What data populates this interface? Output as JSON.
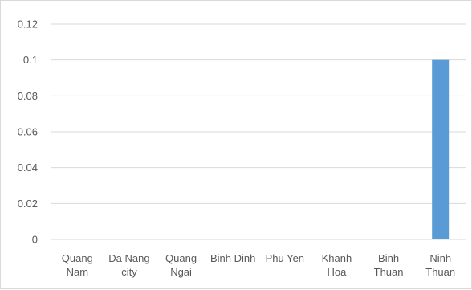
{
  "chart_data": {
    "type": "bar",
    "categories": [
      [
        "Quang",
        "Nam"
      ],
      [
        "Da Nang",
        "city"
      ],
      [
        "Quang",
        "Ngai"
      ],
      [
        "Binh Dinh"
      ],
      [
        "Phu Yen"
      ],
      [
        "Khanh",
        "Hoa"
      ],
      [
        "Binh",
        "Thuan"
      ],
      [
        "Ninh",
        "Thuan"
      ]
    ],
    "values": [
      0,
      0,
      0,
      0,
      0,
      0,
      0,
      0.1
    ],
    "ylim": [
      0,
      0.12
    ],
    "yticks": [
      "0",
      "0.02",
      "0.04",
      "0.06",
      "0.08",
      "0.1",
      "0.12"
    ],
    "grid": true,
    "bar_color": "#5b9bd5",
    "grid_color": "#d9d9d9",
    "title": "",
    "xlabel": "",
    "ylabel": ""
  }
}
